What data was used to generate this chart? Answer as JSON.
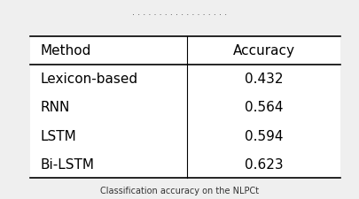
{
  "headers": [
    "Method",
    "Accuracy"
  ],
  "rows": [
    [
      "Lexicon-based",
      "0.432"
    ],
    [
      "RNN",
      "0.564"
    ],
    [
      "LSTM",
      "0.594"
    ],
    [
      "Bi-LSTM",
      "0.623"
    ]
  ],
  "background_color": "#efefef",
  "table_bg": "#ffffff",
  "font_size": 11,
  "top_text": "· · · · · · · · · · · · · · · · · ·",
  "bottom_text": "Classification accuracy on the NLPCt"
}
